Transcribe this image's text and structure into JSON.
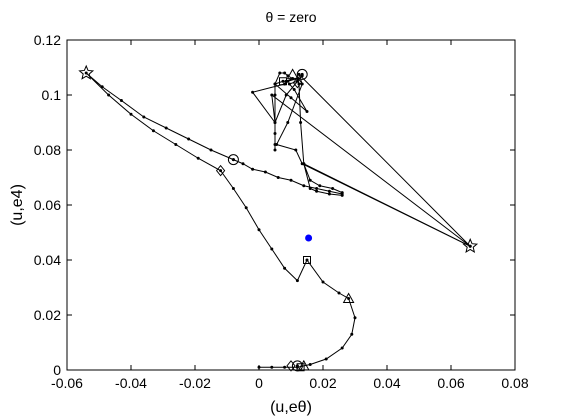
{
  "chart_data": {
    "type": "line",
    "title": "θ = zero",
    "xlabel": "(u,eθ)",
    "ylabel": "(u,e4)",
    "xlim": [
      -0.06,
      0.08
    ],
    "ylim": [
      0,
      0.12
    ],
    "xticks": [
      -0.06,
      -0.04,
      -0.02,
      0,
      0.02,
      0.04,
      0.06,
      0.08
    ],
    "xtick_labels": [
      "-0.06",
      "-0.04",
      "-0.02",
      "0",
      "0.02",
      "0.04",
      "0.06",
      "0.08"
    ],
    "yticks": [
      0,
      0.02,
      0.04,
      0.06,
      0.08,
      0.1,
      0.12
    ],
    "ytick_labels": [
      "0",
      "0.02",
      "0.04",
      "0.06",
      "0.08",
      "0.1",
      "0.12"
    ],
    "grid": false,
    "colors": {
      "line": "#000000",
      "dot": "#0000ff",
      "axes": "#000000",
      "background": "#ffffff"
    },
    "series": [
      {
        "points": [
          [
            0.026,
            0.064
          ],
          [
            0.022,
            0.065
          ],
          [
            0.018,
            0.066
          ],
          [
            0.014,
            0.067
          ],
          [
            0.01,
            0.069
          ],
          [
            0.006,
            0.07
          ],
          [
            0.002,
            0.072
          ],
          [
            -0.002,
            0.073
          ],
          [
            -0.005,
            0.075
          ],
          [
            -0.008,
            0.0765
          ],
          [
            -0.015,
            0.08
          ],
          [
            -0.022,
            0.084
          ],
          [
            -0.029,
            0.088
          ],
          [
            -0.036,
            0.092
          ],
          [
            -0.043,
            0.098
          ],
          [
            -0.049,
            0.103
          ],
          [
            -0.054,
            0.108
          ],
          [
            -0.047,
            0.1
          ],
          [
            -0.04,
            0.093
          ],
          [
            -0.033,
            0.087
          ],
          [
            -0.026,
            0.082
          ],
          [
            -0.019,
            0.077
          ],
          [
            -0.012,
            0.0725
          ],
          [
            -0.008,
            0.066
          ],
          [
            -0.004,
            0.059
          ],
          [
            0,
            0.051
          ],
          [
            0.004,
            0.044
          ],
          [
            0.008,
            0.037
          ],
          [
            0.012,
            0.0325
          ],
          [
            0.015,
            0.04
          ],
          [
            0.02,
            0.032
          ],
          [
            0.025,
            0.028
          ],
          [
            0.028,
            0.026
          ],
          [
            0.03,
            0.019
          ],
          [
            0.029,
            0.013
          ],
          [
            0.026,
            0.008
          ],
          [
            0.021,
            0.004
          ],
          [
            0.016,
            0.002
          ],
          [
            0.012,
            0.001
          ],
          [
            0.008,
            0.001
          ],
          [
            0.004,
            0.001
          ],
          [
            0,
            0.001
          ]
        ],
        "markers": [
          {
            "symbol": "hexagram",
            "x": -0.054,
            "y": 0.108
          },
          {
            "symbol": "circle",
            "x": -0.008,
            "y": 0.0765
          },
          {
            "symbol": "diamond",
            "x": -0.012,
            "y": 0.0725
          },
          {
            "symbol": "square",
            "x": 0.015,
            "y": 0.04
          },
          {
            "symbol": "triangle",
            "x": 0.028,
            "y": 0.026
          },
          {
            "symbol": "circle",
            "x": 0.012,
            "y": 0.0015
          },
          {
            "symbol": "square",
            "x": 0.013,
            "y": 0.001
          },
          {
            "symbol": "diamond",
            "x": 0.01,
            "y": 0.0015
          },
          {
            "symbol": "triangle",
            "x": 0.014,
            "y": 0.0015
          }
        ]
      },
      {
        "points": [
          [
            0.026,
            0.0635
          ],
          [
            0.022,
            0.064
          ],
          [
            0.018,
            0.065
          ],
          [
            0.016,
            0.066
          ],
          [
            0.014,
            0.075
          ],
          [
            0.013,
            0.09
          ],
          [
            0.0125,
            0.104
          ],
          [
            0.012,
            0.106
          ],
          [
            0.009,
            0.105
          ],
          [
            0.008,
            0.104
          ],
          [
            -0.002,
            0.101
          ],
          [
            0.005,
            0.09
          ],
          [
            0.005,
            0.082
          ],
          [
            0.005,
            0.08
          ],
          [
            0.005,
            0.086
          ],
          [
            0.005,
            0.1
          ],
          [
            0.005,
            0.104
          ],
          [
            0.0065,
            0.108
          ],
          [
            0.008,
            0.108
          ],
          [
            0.009,
            0.107
          ],
          [
            0.0105,
            0.106
          ],
          [
            0.0085,
            0.105
          ],
          [
            0.0075,
            0.105
          ],
          [
            0.005,
            0.104
          ],
          [
            0.01,
            0.099
          ],
          [
            0.015,
            0.094
          ],
          [
            0.011,
            0.102
          ],
          [
            0.0095,
            0.104
          ],
          [
            0.012,
            0.105
          ],
          [
            0.0135,
            0.107
          ],
          [
            0.0085,
            0.1
          ],
          [
            0.005,
            0.09
          ],
          [
            0.004,
            0.1
          ],
          [
            0.066,
            0.045
          ],
          [
            0.0125,
            0.1075
          ],
          [
            0.0135,
            0.104
          ],
          [
            0.009,
            0.09
          ],
          [
            0.0055,
            0.082
          ],
          [
            0.0115,
            0.08
          ],
          [
            0.0135,
            0.075
          ],
          [
            0.066,
            0.045
          ],
          [
            0.014,
            0.075
          ],
          [
            0.016,
            0.069
          ],
          [
            0.019,
            0.067
          ],
          [
            0.023,
            0.066
          ],
          [
            0.026,
            0.0645
          ]
        ],
        "markers": [
          {
            "symbol": "hexagram",
            "x": 0.066,
            "y": 0.045
          },
          {
            "symbol": "circle",
            "x": 0.0135,
            "y": 0.1075
          },
          {
            "symbol": "square",
            "x": 0.0075,
            "y": 0.105
          },
          {
            "symbol": "triangle",
            "x": 0.0105,
            "y": 0.1075
          },
          {
            "symbol": "diamond",
            "x": 0.012,
            "y": 0.1045
          }
        ]
      }
    ],
    "highlight_point": {
      "x": 0.0155,
      "y": 0.048
    }
  }
}
